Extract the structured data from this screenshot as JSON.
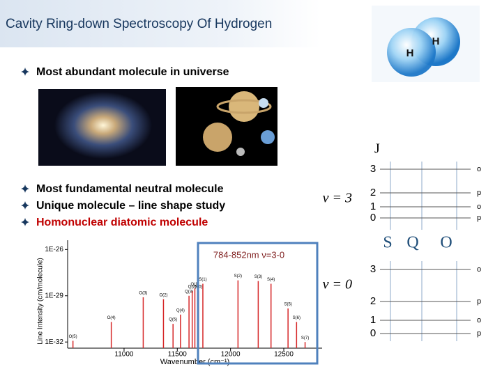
{
  "header": {
    "title": "Cavity Ring-down Spectroscopy Of Hydrogen",
    "atoms": [
      "H",
      "H"
    ]
  },
  "bullets_top": [
    {
      "text": "Most abundant molecule in universe",
      "color": "#000000"
    }
  ],
  "bullets": [
    {
      "text": "Most fundamental neutral molecule",
      "color": "#000000"
    },
    {
      "text": "Unique molecule – line shape study",
      "color": "#000000"
    },
    {
      "text": "Homonuclear diatomic molecule",
      "color": "#c00000"
    }
  ],
  "spectrum": {
    "type": "spectrum-lines",
    "xlabel": "Wavenumber (cm⁻¹)",
    "ylabel": "Line Intensity (cm/molecule)",
    "annotation": "784-852nm ν=3-0",
    "color": "#d62728",
    "log_y": true,
    "xlim": [
      10470,
      12860
    ],
    "xticks": [
      11000,
      11500,
      12000,
      12500
    ],
    "ylim": [
      4e-33,
      4e-26
    ],
    "yticks": [
      {
        "value": 1e-26,
        "label": "1E-26"
      },
      {
        "value": 1e-29,
        "label": "1E-29"
      },
      {
        "value": 1e-32,
        "label": "1E-32"
      }
    ],
    "lines": [
      {
        "name": "O(5)",
        "wavenumber": 10520,
        "intensity": 1.2e-32
      },
      {
        "name": "O(4)",
        "wavenumber": 10880,
        "intensity": 2e-31
      },
      {
        "name": "O(3)",
        "wavenumber": 11180,
        "intensity": 8e-30
      },
      {
        "name": "O(2)",
        "wavenumber": 11370,
        "intensity": 6e-30
      },
      {
        "name": "Q(5)",
        "wavenumber": 11460,
        "intensity": 1.5e-31
      },
      {
        "name": "Q(4)",
        "wavenumber": 11530,
        "intensity": 6e-31
      },
      {
        "name": "Q(3)",
        "wavenumber": 11610,
        "intensity": 1e-29
      },
      {
        "name": "Q(2)",
        "wavenumber": 11640,
        "intensity": 2e-29
      },
      {
        "name": "Q(1)",
        "wavenumber": 11665,
        "intensity": 3e-29
      },
      {
        "name": "S(0)",
        "wavenumber": 11700,
        "intensity": 2e-29
      },
      {
        "name": "S(1)",
        "wavenumber": 11740,
        "intensity": 6e-29
      },
      {
        "name": "S(2)",
        "wavenumber": 12070,
        "intensity": 1e-28
      },
      {
        "name": "S(3)",
        "wavenumber": 12260,
        "intensity": 9e-29
      },
      {
        "name": "S(4)",
        "wavenumber": 12380,
        "intensity": 6e-29
      },
      {
        "name": "S(5)",
        "wavenumber": 12540,
        "intensity": 1.5e-30
      },
      {
        "name": "S(6)",
        "wavenumber": 12620,
        "intensity": 2e-31
      },
      {
        "name": "S(7)",
        "wavenumber": 12700,
        "intensity": 1e-32
      }
    ]
  },
  "levels": {
    "J_header": "J",
    "branches": [
      "S",
      "Q",
      "O"
    ],
    "upper": {
      "label": "ν = 3",
      "J": [
        "3",
        "2",
        "1",
        "0"
      ],
      "parity": [
        "o",
        "p",
        "o",
        "p"
      ]
    },
    "lower": {
      "label": "ν = 0",
      "J": [
        "3",
        "2",
        "1",
        "0"
      ],
      "parity": [
        "o",
        "p",
        "o",
        "p"
      ]
    }
  }
}
